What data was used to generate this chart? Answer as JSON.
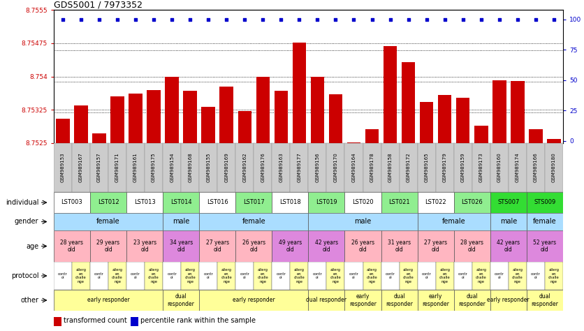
{
  "title": "GDS5001 / 7973352",
  "gsm_ids": [
    "GSM989153",
    "GSM989167",
    "GSM989157",
    "GSM989171",
    "GSM989161",
    "GSM989175",
    "GSM989154",
    "GSM989168",
    "GSM989155",
    "GSM989169",
    "GSM989162",
    "GSM989176",
    "GSM989163",
    "GSM989177",
    "GSM989156",
    "GSM989170",
    "GSM989164",
    "GSM989178",
    "GSM989158",
    "GSM989172",
    "GSM989165",
    "GSM989179",
    "GSM989159",
    "GSM989173",
    "GSM989160",
    "GSM989174",
    "GSM989166",
    "GSM989180"
  ],
  "bar_values": [
    8.75305,
    8.75335,
    8.75272,
    8.75355,
    8.75362,
    8.7537,
    8.754,
    8.75368,
    8.75332,
    8.75378,
    8.75322,
    8.754,
    8.75368,
    8.75476,
    8.754,
    8.7536,
    8.75252,
    8.75282,
    8.75468,
    8.75432,
    8.75342,
    8.75358,
    8.75352,
    8.7529,
    8.75392,
    8.7539,
    8.75282,
    8.7526
  ],
  "percentile_values": [
    100,
    100,
    100,
    100,
    100,
    100,
    100,
    100,
    100,
    100,
    100,
    100,
    100,
    100,
    100,
    100,
    100,
    100,
    100,
    100,
    100,
    100,
    100,
    100,
    100,
    100,
    100,
    100
  ],
  "ymin": 8.7525,
  "ymax": 8.7555,
  "y_ticks_left": [
    8.7525,
    8.75325,
    8.754,
    8.75475,
    8.7555
  ],
  "y_ticks_right": [
    0,
    25,
    50,
    75,
    100
  ],
  "individual_col_spans": [
    [
      0,
      2,
      "LST003",
      "#ffffff"
    ],
    [
      2,
      4,
      "LST012",
      "#90ee90"
    ],
    [
      4,
      6,
      "LST013",
      "#ffffff"
    ],
    [
      6,
      8,
      "LST014",
      "#90ee90"
    ],
    [
      8,
      10,
      "LST016",
      "#ffffff"
    ],
    [
      10,
      12,
      "LST017",
      "#90ee90"
    ],
    [
      12,
      14,
      "LST018",
      "#ffffff"
    ],
    [
      14,
      16,
      "LST019",
      "#90ee90"
    ],
    [
      16,
      18,
      "LST020",
      "#ffffff"
    ],
    [
      18,
      20,
      "LST021",
      "#90ee90"
    ],
    [
      20,
      22,
      "LST022",
      "#ffffff"
    ],
    [
      22,
      24,
      "LST026",
      "#90ee90"
    ],
    [
      24,
      26,
      "STS007",
      "#33dd33"
    ],
    [
      26,
      28,
      "STS009",
      "#33dd33"
    ]
  ],
  "gender_spans": [
    [
      0,
      6,
      "female",
      "#aaddff"
    ],
    [
      6,
      8,
      "male",
      "#aaddff"
    ],
    [
      8,
      14,
      "female",
      "#aaddff"
    ],
    [
      14,
      20,
      "male",
      "#aaddff"
    ],
    [
      20,
      24,
      "female",
      "#aaddff"
    ],
    [
      24,
      26,
      "male",
      "#aaddff"
    ],
    [
      26,
      28,
      "female",
      "#aaddff"
    ]
  ],
  "age_spans": [
    [
      0,
      2,
      "28 years\nold",
      "#ffb6c1"
    ],
    [
      2,
      4,
      "29 years\nold",
      "#ffb6c1"
    ],
    [
      4,
      6,
      "23 years\nold",
      "#ffb6c1"
    ],
    [
      6,
      8,
      "34 years\nold",
      "#dd88dd"
    ],
    [
      8,
      10,
      "27 years\nold",
      "#ffb6c1"
    ],
    [
      10,
      12,
      "26 years\nold",
      "#ffb6c1"
    ],
    [
      12,
      14,
      "49 years\nold",
      "#dd88dd"
    ],
    [
      14,
      16,
      "42 years\nold",
      "#dd88dd"
    ],
    [
      16,
      18,
      "26 years\nold",
      "#ffb6c1"
    ],
    [
      18,
      20,
      "31 years\nold",
      "#ffb6c1"
    ],
    [
      20,
      22,
      "27 years\nold",
      "#ffb6c1"
    ],
    [
      22,
      24,
      "28 years\nold",
      "#ffb6c1"
    ],
    [
      24,
      26,
      "42 years\nold",
      "#dd88dd"
    ],
    [
      26,
      28,
      "52 years\nold",
      "#dd88dd"
    ]
  ],
  "protocol_labels": [
    "contr\nol",
    "allerg\nen\nchalle\nnge",
    "contr\nol",
    "allerg\nen\nchalle\nnge",
    "contr\nol",
    "allerg\nen\nchalle\nnge",
    "contr\nol",
    "allerg\nen\nchalle\nnge",
    "contr\nol",
    "allerg\nen\nchalle\nnge",
    "contr\nol",
    "allerg\nen\nchalle\nnge",
    "contr\nol",
    "allerg\nen\nchalle\nnge",
    "contr\nol",
    "allerg\nen\nchalle\nnge",
    "contr\nol",
    "allerg\nen\nchalle\nnge",
    "contr\nol",
    "allerg\nen\nchalle\nnge",
    "contr\nol",
    "allerg\nen\nchalle\nnge",
    "contr\nol",
    "allerg\nen\nchalle\nnge",
    "contr\nol",
    "allerg\nen\nchalle\nnge",
    "contr\nol",
    "allerg\nen\nchalle\nnge"
  ],
  "protocol_colors": [
    "#ffffff",
    "#ffffaa",
    "#ffffff",
    "#ffffaa",
    "#ffffff",
    "#ffffaa",
    "#ffffff",
    "#ffffaa",
    "#ffffff",
    "#ffffaa",
    "#ffffff",
    "#ffffaa",
    "#ffffff",
    "#ffffaa",
    "#ffffff",
    "#ffffaa",
    "#ffffff",
    "#ffffaa",
    "#ffffff",
    "#ffffaa",
    "#ffffff",
    "#ffffaa",
    "#ffffff",
    "#ffffaa",
    "#ffffff",
    "#ffffaa",
    "#ffffff",
    "#ffffaa"
  ],
  "other_spans": [
    [
      0,
      6,
      "early responder",
      "#ffff99"
    ],
    [
      6,
      8,
      "dual\nresponder",
      "#ffff99"
    ],
    [
      8,
      14,
      "early responder",
      "#ffff99"
    ],
    [
      14,
      16,
      "dual responder",
      "#ffff99"
    ],
    [
      16,
      18,
      "early\nresponder",
      "#ffff99"
    ],
    [
      18,
      20,
      "dual\nresponder",
      "#ffff99"
    ],
    [
      20,
      22,
      "early\nresponder",
      "#ffff99"
    ],
    [
      22,
      24,
      "dual\nresponder",
      "#ffff99"
    ],
    [
      24,
      26,
      "early responder",
      "#ffff99"
    ],
    [
      26,
      28,
      "dual\nresponder",
      "#ffff99"
    ]
  ],
  "bar_color": "#cc0000",
  "dot_color": "#0000cc",
  "bg_color": "#ffffff",
  "axis_color_left": "#cc0000",
  "axis_color_right": "#0000cc",
  "gsm_bg_color": "#cccccc",
  "n_cols": 28
}
